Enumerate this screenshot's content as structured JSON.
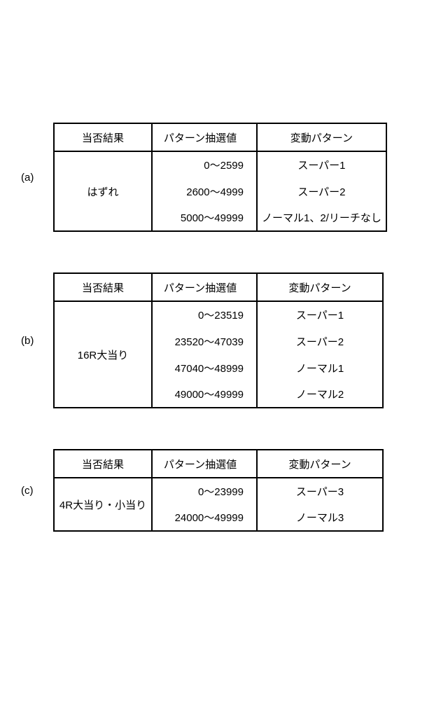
{
  "tables": [
    {
      "label": "(a)",
      "headers": {
        "result": "当否結果",
        "value": "パターン抽選値",
        "pattern": "変動パターン"
      },
      "result": "はずれ",
      "rows": [
        {
          "value": "0～2599",
          "pattern": "スーパー1"
        },
        {
          "value": "2600～4999",
          "pattern": "スーパー2"
        },
        {
          "value": "5000～49999",
          "pattern": "ノーマル1、2/リーチなし"
        }
      ]
    },
    {
      "label": "(b)",
      "headers": {
        "result": "当否結果",
        "value": "パターン抽選値",
        "pattern": "変動パターン"
      },
      "result": "16R大当り",
      "rows": [
        {
          "value": "0～23519",
          "pattern": "スーパー1"
        },
        {
          "value": "23520～47039",
          "pattern": "スーパー2"
        },
        {
          "value": "47040～48999",
          "pattern": "ノーマル1"
        },
        {
          "value": "49000～49999",
          "pattern": "ノーマル2"
        }
      ]
    },
    {
      "label": "(c)",
      "headers": {
        "result": "当否結果",
        "value": "パターン抽選値",
        "pattern": "変動パターン"
      },
      "result": "4R大当り・小当り",
      "rows": [
        {
          "value": "0～23999",
          "pattern": "スーパー3"
        },
        {
          "value": "24000～49999",
          "pattern": "ノーマル3"
        }
      ]
    }
  ]
}
